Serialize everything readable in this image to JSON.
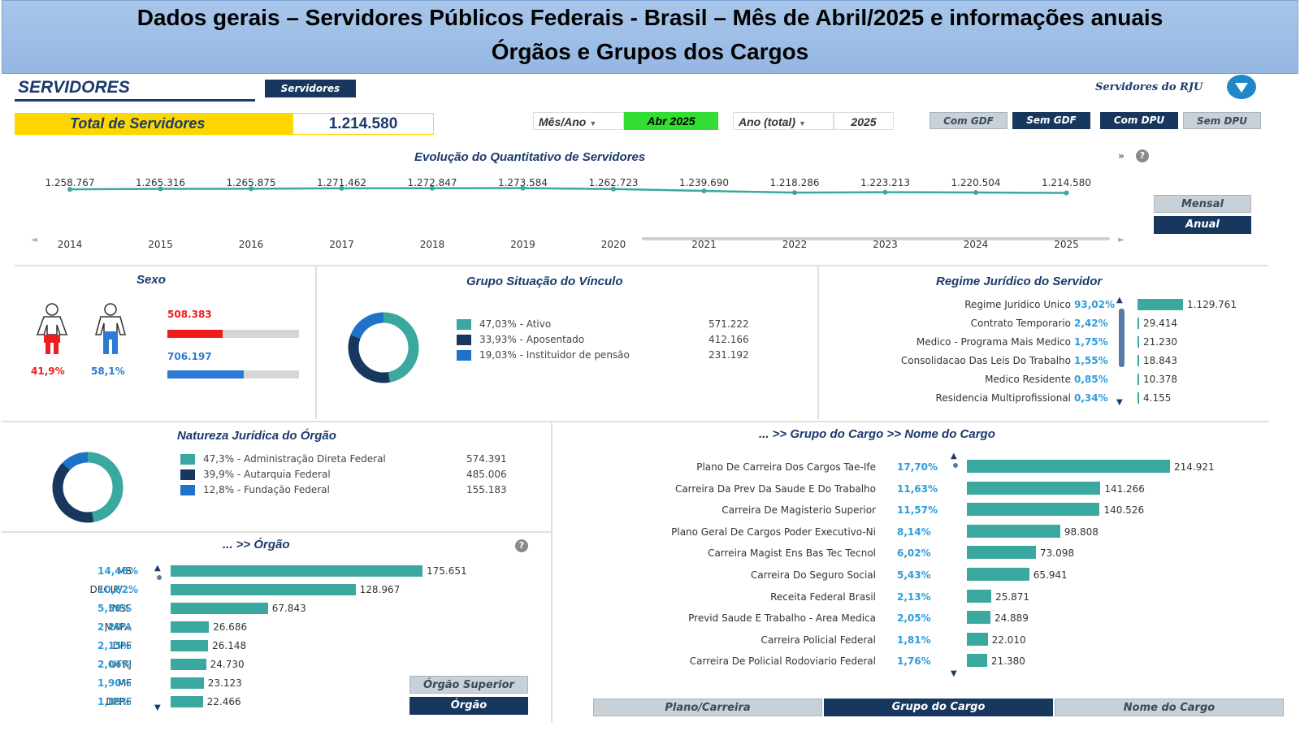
{
  "header": {
    "line1": "Dados gerais – Servidores Públicos Federais - Brasil – Mês de Abril/2025 e informações anuais",
    "line2": "Órgãos e Grupos dos Cargos"
  },
  "toolbar": {
    "section_title": "SERVIDORES",
    "servidores_button": "Servidores",
    "rju_label": "Servidores do RJU",
    "total_label": "Total de Servidores",
    "total_value": "1.214.580",
    "mes_ano_label": "Mês/Ano",
    "mes_ano_value": "Abr 2025",
    "ano_total_label": "Ano (total)",
    "ano_total_value": "2025",
    "buttons": [
      "Com GDF",
      "Sem GDF",
      "Com DPU",
      "Sem DPU"
    ]
  },
  "evolucao": {
    "title": "Evolução do Quantitativo de Servidores",
    "toggle_mensal": "Mensal",
    "toggle_anual": "Anual",
    "chart_data": {
      "type": "line",
      "x": [
        "2014",
        "2015",
        "2016",
        "2017",
        "2018",
        "2019",
        "2020",
        "2021",
        "2022",
        "2023",
        "2024",
        "2025"
      ],
      "series": [
        {
          "values": [
            1258767,
            1265316,
            1265875,
            1271462,
            1272847,
            1273584,
            1262723,
            1239690,
            1218286,
            1223213,
            1220504,
            1214580
          ]
        }
      ],
      "labels": [
        "1.258.767",
        "1.265.316",
        "1.265.875",
        "1.271.462",
        "1.272.847",
        "1.273.584",
        "1.262.723",
        "1.239.690",
        "1.218.286",
        "1.223.213",
        "1.220.504",
        "1.214.580"
      ],
      "color": "#3aa89f"
    }
  },
  "sexo": {
    "title": "Sexo",
    "female_pct": "41,9%",
    "male_pct": "58,1%",
    "female_value": "508.383",
    "male_value": "706.197",
    "female_fraction": 0.419,
    "male_fraction": 0.581,
    "female_color": "#ee1c1c",
    "male_color": "#2b7bd4"
  },
  "vinculo": {
    "title": "Grupo Situação do Vínculo",
    "items": [
      {
        "label": "47,03% - Ativo",
        "value": "571.222",
        "fraction": 0.4703,
        "color": "#3aa89f"
      },
      {
        "label": "33,93% - Aposentado",
        "value": "412.166",
        "fraction": 0.3393,
        "color": "#17375e"
      },
      {
        "label": "19,03% - Instituidor de pensão",
        "value": "231.192",
        "fraction": 0.1903,
        "color": "#1e73c8"
      }
    ]
  },
  "regime": {
    "title": "Regime Jurídico do Servidor",
    "rows": [
      {
        "label": "Regime Juridico Unico",
        "pct": "93,02%",
        "value": "1.129.761",
        "num": 1129761
      },
      {
        "label": "Contrato Temporario",
        "pct": "2,42%",
        "value": "29.414",
        "num": 29414
      },
      {
        "label": "Medico - Programa Mais Medico",
        "pct": "1,75%",
        "value": "21.230",
        "num": 21230
      },
      {
        "label": "Consolidacao Das Leis Do Trabalho",
        "pct": "1,55%",
        "value": "18.843",
        "num": 18843
      },
      {
        "label": "Medico Residente",
        "pct": "0,85%",
        "value": "10.378",
        "num": 10378
      },
      {
        "label": "Residencia Multiprofissional",
        "pct": "0,34%",
        "value": "4.155",
        "num": 4155
      }
    ]
  },
  "natureza": {
    "title": "Natureza Jurídica do Órgão",
    "items": [
      {
        "label": "47,3% - Administração Direta Federal",
        "value": "574.391",
        "fraction": 0.473,
        "color": "#3aa89f"
      },
      {
        "label": "39,9% - Autarquia Federal",
        "value": "485.006",
        "fraction": 0.399,
        "color": "#17375e"
      },
      {
        "label": "12,8% - Fundação Federal",
        "value": "155.183",
        "fraction": 0.128,
        "color": "#1e73c8"
      }
    ]
  },
  "orgao": {
    "title": "... >> Órgão",
    "btn_superior": "Órgão Superior",
    "btn_orgao": "Órgão",
    "rows": [
      {
        "label": "MS",
        "pct": "14,46%",
        "value": "175.651",
        "num": 175651
      },
      {
        "label": "DECIP/...",
        "pct": "10,62%",
        "value": "128.967",
        "num": 128967
      },
      {
        "label": "INSS",
        "pct": "5,59%",
        "value": "67.843",
        "num": 67843
      },
      {
        "label": "MAPA",
        "pct": "2,20%",
        "value": "26.686",
        "num": 26686
      },
      {
        "label": "DPF",
        "pct": "2,15%",
        "value": "26.148",
        "num": 26148
      },
      {
        "label": "UFRJ",
        "pct": "2,04%",
        "value": "24.730",
        "num": 24730
      },
      {
        "label": "MF",
        "pct": "1,90%",
        "value": "23.123",
        "num": 23123
      },
      {
        "label": "DPRF",
        "pct": "1,85%",
        "value": "22.466",
        "num": 22466
      }
    ]
  },
  "cargo": {
    "title": "... >> Grupo do Cargo >> Nome do Cargo",
    "tabs": [
      "Plano/Carreira",
      "Grupo do Cargo",
      "Nome do Cargo"
    ],
    "rows": [
      {
        "label": "Plano De Carreira Dos Cargos Tae-Ife",
        "pct": "17,70%",
        "value": "214.921",
        "num": 214921
      },
      {
        "label": "Carreira Da Prev Da Saude E Do Trabalho",
        "pct": "11,63%",
        "value": "141.266",
        "num": 141266
      },
      {
        "label": "Carreira De Magisterio Superior",
        "pct": "11,57%",
        "value": "140.526",
        "num": 140526
      },
      {
        "label": "Plano Geral De Cargos Poder Executivo-Ni",
        "pct": "8,14%",
        "value": "98.808",
        "num": 98808
      },
      {
        "label": "Carreira Magist Ens Bas Tec Tecnol",
        "pct": "6,02%",
        "value": "73.098",
        "num": 73098
      },
      {
        "label": "Carreira Do Seguro Social",
        "pct": "5,43%",
        "value": "65.941",
        "num": 65941
      },
      {
        "label": "Receita Federal Brasil",
        "pct": "2,13%",
        "value": "25.871",
        "num": 25871
      },
      {
        "label": "Previd  Saude E Trabalho - Area Medica",
        "pct": "2,05%",
        "value": "24.889",
        "num": 24889
      },
      {
        "label": "Carreira Policial Federal",
        "pct": "1,81%",
        "value": "22.010",
        "num": 22010
      },
      {
        "label": "Carreira De Policial Rodoviario Federal",
        "pct": "1,76%",
        "value": "21.380",
        "num": 21380
      }
    ]
  }
}
